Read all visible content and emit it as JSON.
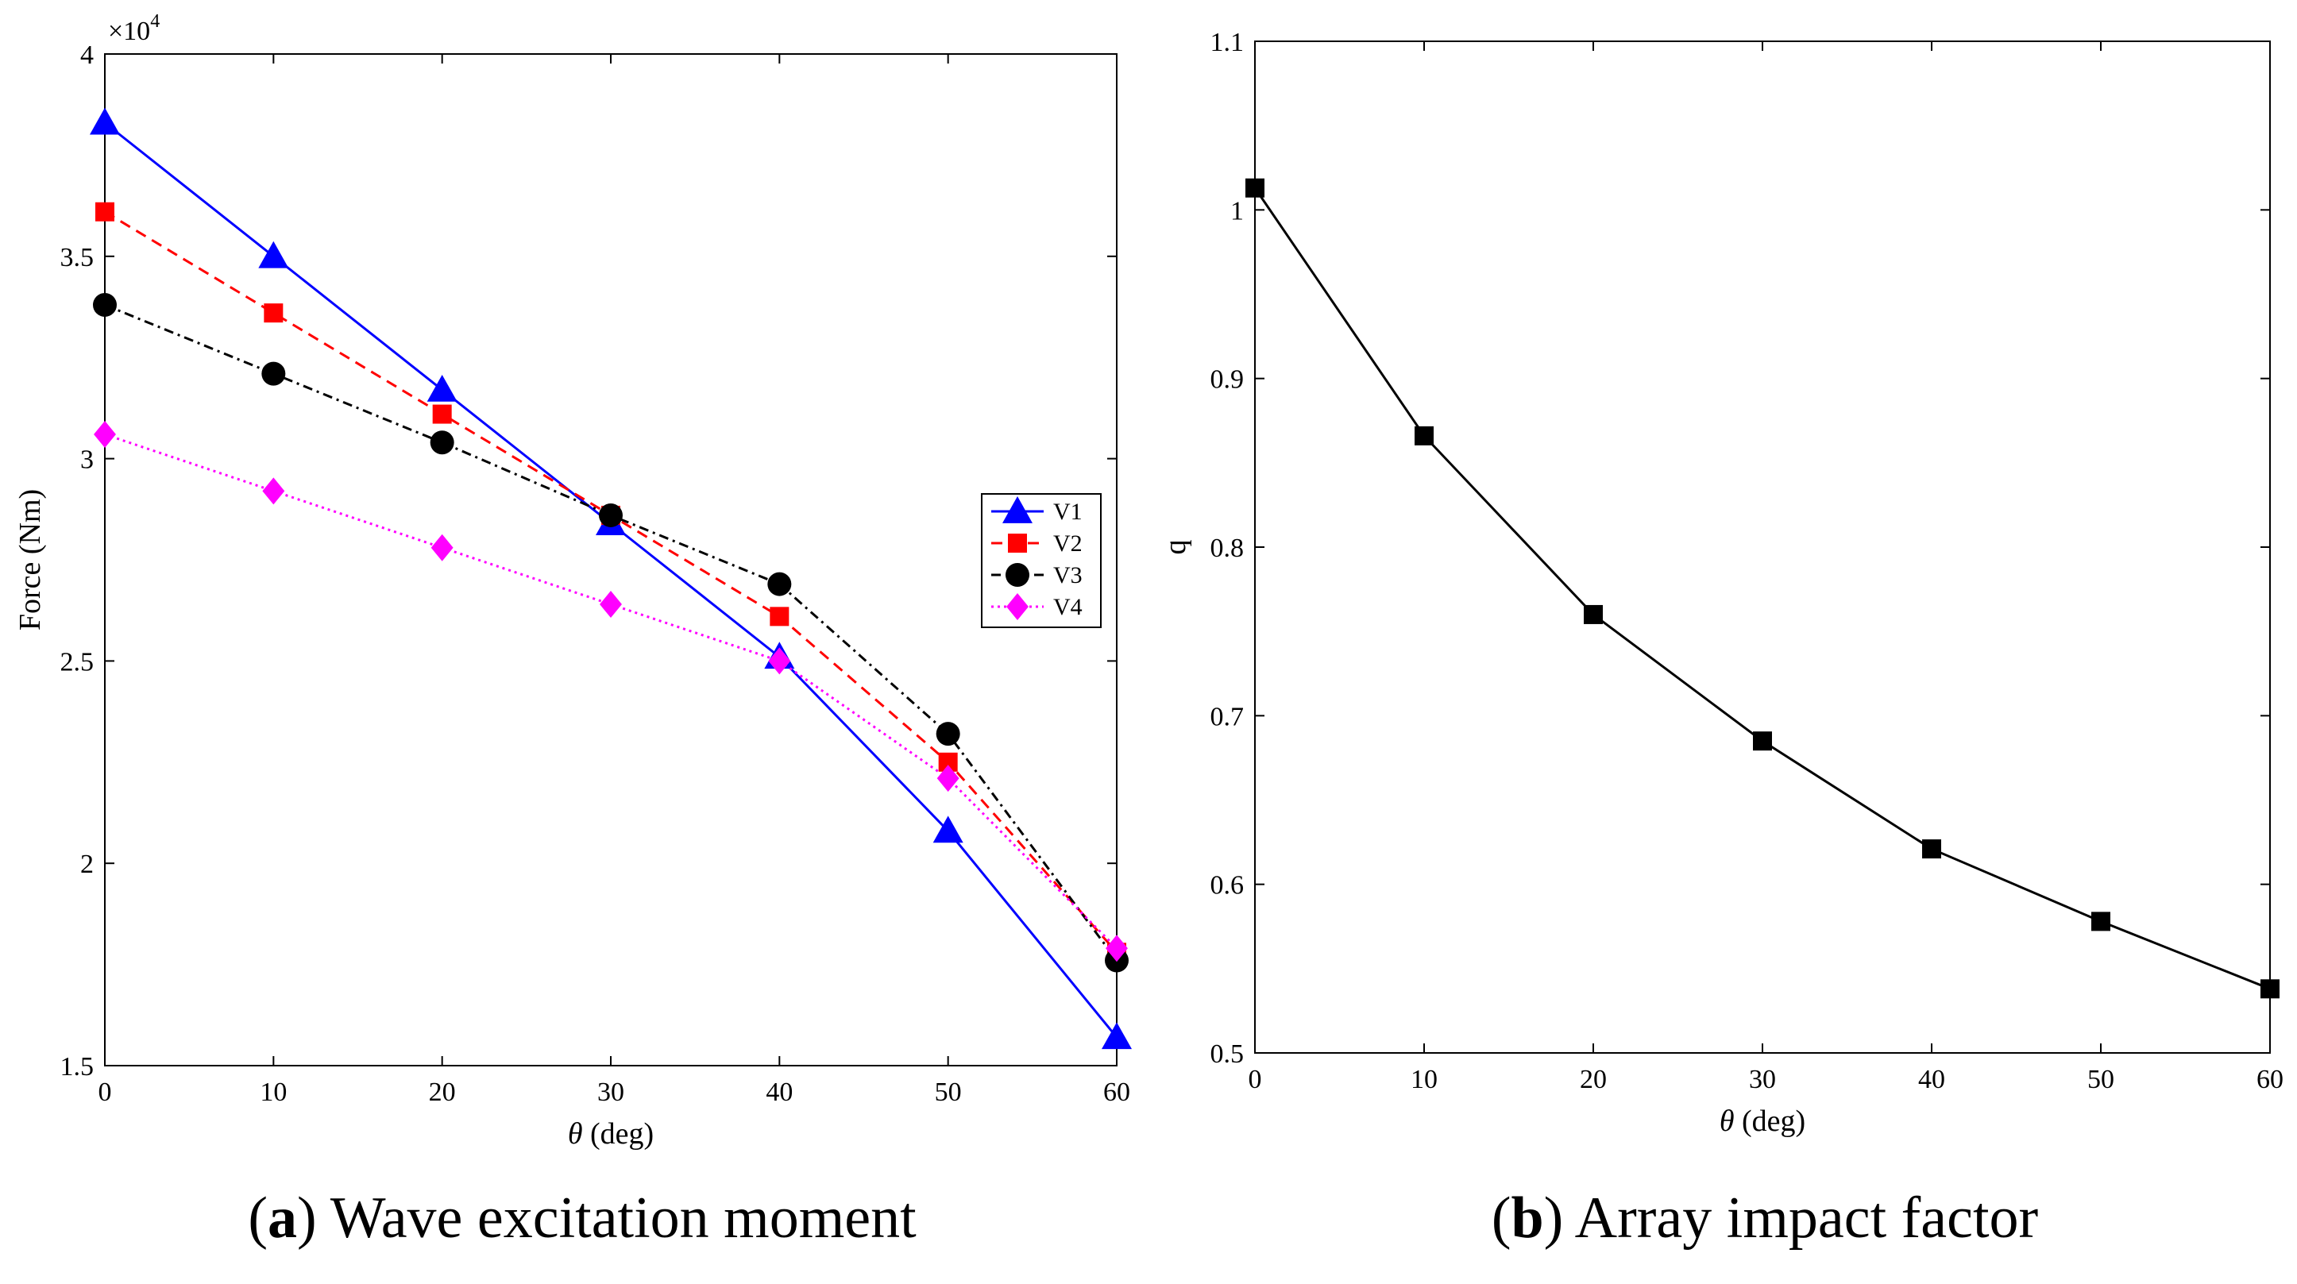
{
  "chart_data": [
    {
      "id": "a",
      "type": "line",
      "title": "",
      "xlabel_italic": "θ",
      "xlabel_unit": " (deg)",
      "ylabel": "Force (Nm)",
      "y_exponent_base": "×10",
      "y_exponent_power": "4",
      "xlim": [
        0,
        60
      ],
      "ylim": [
        1.5,
        4
      ],
      "xticks": [
        0,
        10,
        20,
        30,
        40,
        50,
        60
      ],
      "yticks": [
        1.5,
        2,
        2.5,
        3,
        3.5,
        4
      ],
      "ytick_labels": [
        "1.5",
        "2",
        "2.5",
        "3",
        "3.5",
        "4"
      ],
      "x": [
        0,
        10,
        20,
        30,
        40,
        50,
        60
      ],
      "series": [
        {
          "name": "V1",
          "color": "#0000ff",
          "marker": "triangle",
          "dash": "",
          "values": [
            3.83,
            3.5,
            3.17,
            2.84,
            2.51,
            2.08,
            1.57
          ]
        },
        {
          "name": "V2",
          "color": "#ff0000",
          "marker": "square",
          "dash": "14,9",
          "values": [
            3.61,
            3.36,
            3.11,
            2.86,
            2.61,
            2.25,
            1.78
          ]
        },
        {
          "name": "V3",
          "color": "#000000",
          "marker": "circle",
          "dash": "12,6,3,6",
          "values": [
            3.38,
            3.21,
            3.04,
            2.86,
            2.69,
            2.32,
            1.76
          ]
        },
        {
          "name": "V4",
          "color": "#ff00ff",
          "marker": "diamond",
          "dash": "3,5",
          "values": [
            3.06,
            2.92,
            2.78,
            2.64,
            2.5,
            2.21,
            1.79
          ]
        }
      ],
      "legend_position": "center-right",
      "caption_letter": "a",
      "caption_text": " Wave excitation moment"
    },
    {
      "id": "b",
      "type": "line",
      "title": "",
      "xlabel_italic": "θ",
      "xlabel_unit": " (deg)",
      "ylabel": "q",
      "xlim": [
        0,
        60
      ],
      "ylim": [
        0.5,
        1.1
      ],
      "xticks": [
        0,
        10,
        20,
        30,
        40,
        50,
        60
      ],
      "yticks": [
        0.5,
        0.6,
        0.7,
        0.8,
        0.9,
        1,
        1.1
      ],
      "ytick_labels": [
        "0.5",
        "0.6",
        "0.7",
        "0.8",
        "0.9",
        "1",
        "1.1"
      ],
      "x": [
        0,
        10,
        20,
        30,
        40,
        50,
        60
      ],
      "series": [
        {
          "name": "q",
          "color": "#000000",
          "marker": "square",
          "dash": "",
          "values": [
            1.013,
            0.866,
            0.76,
            0.685,
            0.621,
            0.578,
            0.538
          ]
        }
      ],
      "legend_position": "none",
      "caption_letter": "b",
      "caption_text": " Array impact factor"
    }
  ]
}
